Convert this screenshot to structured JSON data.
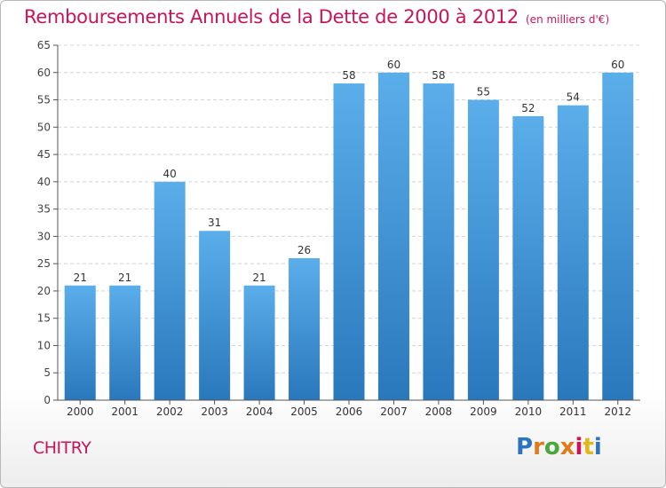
{
  "header": {
    "title": "Remboursements Annuels de la Dette de 2000 à 2012",
    "unit": "(en milliers d'€)"
  },
  "footer": {
    "city": "CHITRY",
    "logo_text": "Proxiti",
    "logo_colors": [
      "#2c74c0",
      "#e07a1a",
      "#4aa83a",
      "#e07a1a",
      "#c8155a",
      "#e0b81a",
      "#2c74c0"
    ]
  },
  "chart_data": {
    "type": "bar",
    "categories": [
      "2000",
      "2001",
      "2002",
      "2003",
      "2004",
      "2005",
      "2006",
      "2007",
      "2008",
      "2009",
      "2010",
      "2011",
      "2012"
    ],
    "values": [
      21,
      21,
      40,
      31,
      21,
      26,
      58,
      60,
      58,
      55,
      52,
      54,
      60
    ],
    "title": "Remboursements Annuels de la Dette de 2000 à 2012",
    "unit": "(en milliers d'€)",
    "ylim": [
      0,
      65
    ],
    "yticks": [
      0,
      5,
      10,
      15,
      20,
      25,
      30,
      35,
      40,
      45,
      50,
      55,
      60,
      65
    ],
    "grid": true,
    "data_labels": true,
    "bar_color": "#3a92d8"
  }
}
